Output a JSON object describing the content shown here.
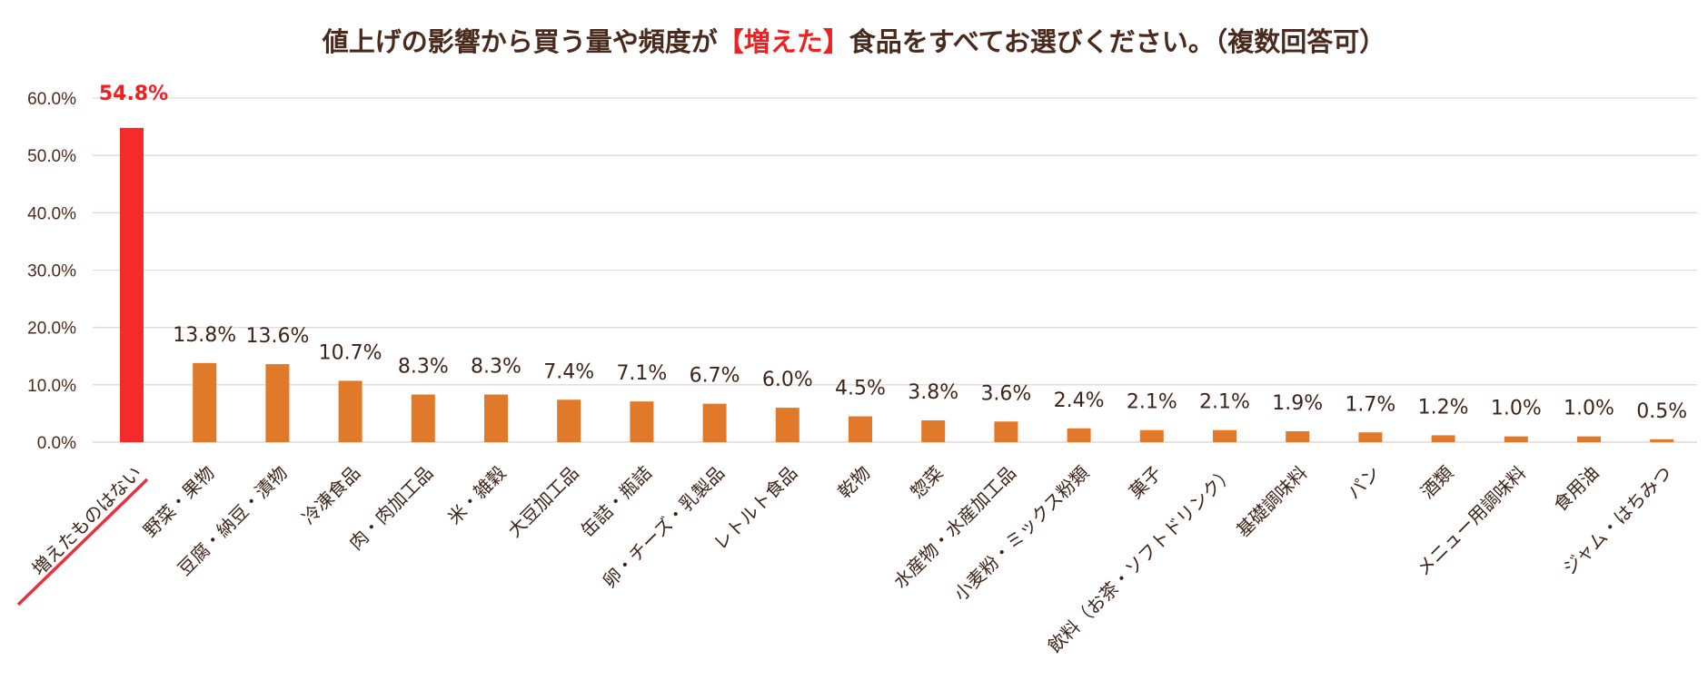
{
  "chart_data": {
    "type": "bar",
    "title": {
      "prefix": "値上げの影響から買う量や頻度が",
      "highlight": "【増えた】",
      "suffix": "食品をすべてお選びください。（複数回答可）"
    },
    "categories": [
      "増えたものはない",
      "野菜・果物",
      "豆腐・納豆・漬物",
      "冷凍食品",
      "肉・肉加工品",
      "米・雑穀",
      "大豆加工品",
      "缶詰・瓶詰",
      "卵・チーズ・乳製品",
      "レトルト食品",
      "乾物",
      "惣菜",
      "水産物・水産加工品",
      "小麦粉・ミックス粉類",
      "菓子",
      "飲料（お茶・ソフトドリンク）",
      "基礎調味料",
      "パン",
      "酒類",
      "メニュー用調味料",
      "食用油",
      "ジャム・はちみつ"
    ],
    "values": [
      54.8,
      13.8,
      13.6,
      10.7,
      8.3,
      8.3,
      7.4,
      7.1,
      6.7,
      6.0,
      4.5,
      3.8,
      3.6,
      2.4,
      2.1,
      2.1,
      1.9,
      1.7,
      1.2,
      1.0,
      1.0,
      0.5
    ],
    "value_labels": [
      "54.8%",
      "13.8%",
      "13.6%",
      "10.7%",
      "8.3%",
      "8.3%",
      "7.4%",
      "7.1%",
      "6.7%",
      "6.0%",
      "4.5%",
      "3.8%",
      "3.6%",
      "2.4%",
      "2.1%",
      "2.1%",
      "1.9%",
      "1.7%",
      "1.2%",
      "1.0%",
      "1.0%",
      "0.5%"
    ],
    "highlight_index": 0,
    "y_ticks": [
      "0.0%",
      "10.0%",
      "20.0%",
      "30.0%",
      "40.0%",
      "50.0%",
      "60.0%"
    ],
    "ylim": [
      0,
      60
    ],
    "grid": true,
    "xlabel": "",
    "ylabel": "",
    "colors": {
      "highlight_bar": "#f52a2a",
      "bar": "#e07a2a",
      "grid": "#e8d6da",
      "title_text": "#4a2a1c",
      "title_highlight": "#f02020",
      "underline": "#e83040"
    }
  }
}
